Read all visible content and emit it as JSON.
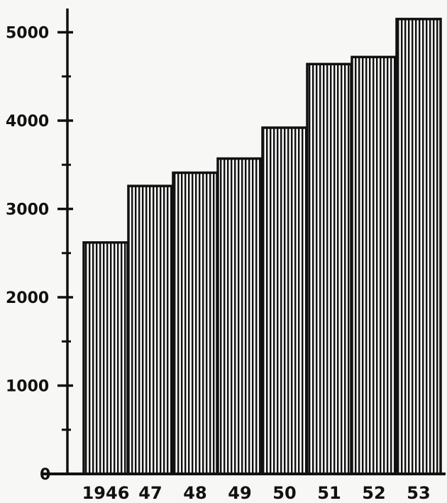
{
  "chart_data": {
    "type": "bar",
    "title": "",
    "xlabel": "",
    "ylabel": "",
    "categories": [
      "1946",
      "47",
      "48",
      "49",
      "50",
      "51",
      "52",
      "53"
    ],
    "values": [
      2620,
      3260,
      3410,
      3570,
      3920,
      4640,
      4720,
      5150
    ],
    "ylim": [
      0,
      5300
    ],
    "yticks": [
      0,
      1000,
      2000,
      3000,
      4000,
      5000
    ],
    "ytick_labels": [
      "0",
      "1000",
      "2000",
      "3000",
      "4000",
      "5000"
    ],
    "y_minor_step": 500,
    "grid": false,
    "legend": "none",
    "bar_fill": "vertical-hatch",
    "colors": {
      "ink": "#111111",
      "paper": "#f7f7f5"
    }
  }
}
